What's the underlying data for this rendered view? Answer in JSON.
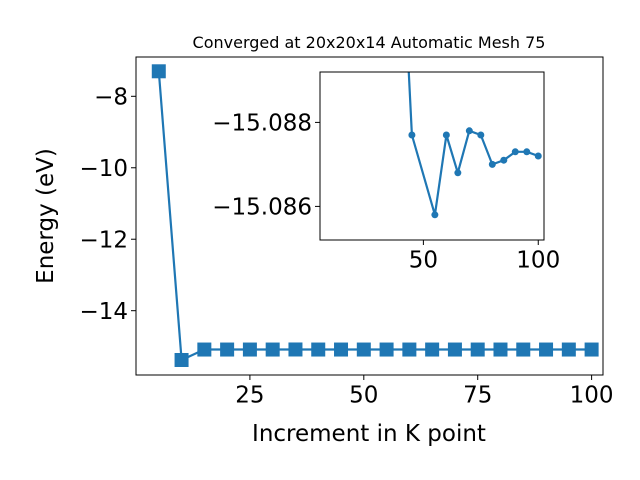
{
  "chart_data": {
    "type": "line",
    "title": "Converged at 20x20x14 Automatic Mesh 75",
    "xlabel": "Increment in K point",
    "ylabel": "Energy (eV)",
    "xlim": [
      0,
      102.5
    ],
    "ylim": [
      -15.8,
      -6.9
    ],
    "xticks": [
      25,
      50,
      75,
      100
    ],
    "yticks": [
      -8,
      -10,
      -12,
      -14
    ],
    "grid": false,
    "color": "#1f77b4",
    "marker": "square",
    "x": [
      5,
      10,
      15,
      20,
      25,
      30,
      35,
      40,
      45,
      50,
      55,
      60,
      65,
      70,
      75,
      80,
      85,
      90,
      95,
      100
    ],
    "y": [
      -7.3,
      -15.38,
      -15.0874,
      -15.0874,
      -15.0874,
      -15.0874,
      -15.0858,
      -15.0874,
      -15.0874,
      -15.0874,
      -15.0874,
      -15.0874,
      -15.0874,
      -15.0874,
      -15.0874,
      -15.0874,
      -15.0874,
      -15.0874,
      -15.0874,
      -15.0874
    ],
    "inset": {
      "type": "line",
      "marker": "circle",
      "xlim": [
        5,
        102.5
      ],
      "ylim": [
        -15.0852,
        -15.0892
      ],
      "xticks": [
        50,
        100
      ],
      "yticks": [
        -15.088,
        -15.086
      ],
      "x": [
        40,
        45,
        55,
        60,
        65,
        70,
        75,
        80,
        85,
        90,
        95,
        100
      ],
      "y": [
        -15.0932,
        -15.0877,
        -15.0858,
        -15.0877,
        -15.0868,
        -15.0878,
        -15.0877,
        -15.087,
        -15.0871,
        -15.0873,
        -15.0873,
        -15.0872
      ]
    }
  }
}
